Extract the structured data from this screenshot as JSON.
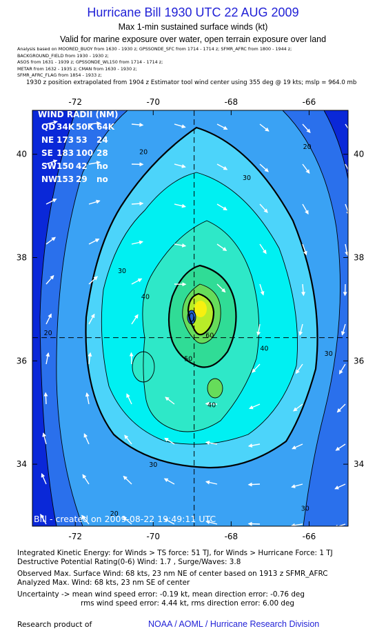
{
  "header": {
    "title": "Hurricane Bill 1930 UTC 22 AUG 2009",
    "subtitle": "Max 1-min sustained surface winds (kt)",
    "validity": "Valid for marine exposure over water, open terrain exposure over land",
    "sources": [
      "Analysis based on  MOORED_BUOY from 1630 - 1930 z;  GPSSONDE_SFC from 1714 - 1714 z;  SFMR_AFRC from 1800 - 1944 z;",
      "BACKGROUND_FIELD from 1930 - 1930 z;",
      "ASOS from 1631 - 1939 z;  GPSSONDE_WL150 from 1714 - 1714 z;",
      "METAR from 1632 - 1935 z;  CMAN from 1630 - 1930 z;",
      "SFMR_AFRC_FLAG from 1854 - 1933 z;"
    ],
    "position_note": "1930 z position extrapolated from 1904 z Estimator tool wind center using 355 deg @ 19 kts; mslp = 964.0 mb"
  },
  "chart_data": {
    "type": "contour",
    "xlabel": "",
    "ylabel": "",
    "x_ticks": [
      "-72",
      "-70",
      "-68",
      "-66"
    ],
    "y_ticks": [
      "40",
      "38",
      "36",
      "34"
    ],
    "x_tick_values": [
      -72,
      -70,
      -68,
      -66
    ],
    "y_tick_values": [
      40,
      38,
      36,
      34
    ],
    "xlim": [
      -73.1,
      -65.0
    ],
    "ylim": [
      32.8,
      40.85
    ],
    "center": {
      "lon": -68.95,
      "lat": 36.45
    },
    "contour_levels": [
      10,
      20,
      30,
      34,
      40,
      50,
      60,
      64
    ],
    "contour_labels": [
      {
        "text": "20",
        "lon": -70.25,
        "lat": 40.0
      },
      {
        "text": "20",
        "lon": -66.05,
        "lat": 40.1
      },
      {
        "text": "30",
        "lon": -67.6,
        "lat": 39.5
      },
      {
        "text": "30",
        "lon": -70.8,
        "lat": 37.7
      },
      {
        "text": "40",
        "lon": -70.2,
        "lat": 37.2
      },
      {
        "text": "40",
        "lon": -67.15,
        "lat": 36.2
      },
      {
        "text": "40",
        "lon": -68.5,
        "lat": 35.1
      },
      {
        "text": "30",
        "lon": -65.5,
        "lat": 36.1
      },
      {
        "text": "20",
        "lon": -72.7,
        "lat": 36.5
      },
      {
        "text": "30",
        "lon": -70.0,
        "lat": 33.95
      },
      {
        "text": "30",
        "lon": -66.1,
        "lat": 33.1
      },
      {
        "text": "20",
        "lon": -71.0,
        "lat": 33.0
      },
      {
        "text": "50",
        "lon": -69.1,
        "lat": 36.0
      },
      {
        "text": "60",
        "lon": -68.55,
        "lat": 36.45
      }
    ],
    "wind_radii": {
      "title": "WIND RADII (NM)",
      "header": [
        "QD",
        "34K",
        "50K",
        "64K"
      ],
      "rows": [
        [
          "NE",
          "173",
          "53",
          "24"
        ],
        [
          "SE",
          "183",
          "100",
          "28"
        ],
        [
          "SW",
          "150",
          "42",
          "no"
        ],
        [
          "NW",
          "153",
          "29",
          "no"
        ]
      ]
    },
    "created_stamp": "Bill - created on 2009-08-22 19:49:11 UTC",
    "colors": {
      "outer": "#0a28d8",
      "blue2": "#2a70ec",
      "blue3": "#3aa2f4",
      "cyan1": "#4cd4fa",
      "cyan2": "#00f0f2",
      "aqua": "#2ee8c8",
      "green1": "#30dc96",
      "green2": "#66dc5a",
      "lime": "#b8ec28",
      "yellow": "#f6f010",
      "core": "#2060d0"
    }
  },
  "footer": {
    "ike": "Integrated Kinetic Energy:  for Winds > TS force: 51 TJ,  for Winds > Hurricane Force: 1 TJ",
    "dpr": "Destructive Potential Rating(0-6)  Wind: 1.7 , Surge/Waves: 3.8",
    "observed": "Observed Max. Surface Wind: 68 kts, 23 nm NE of center based on 1913 z SFMR_AFRC",
    "analyzed": "Analyzed Max. Wind: 68 kts, 23 nm SE of center",
    "uncertainty_line1": "Uncertainty -> mean wind speed error:  -0.19 kt,   mean direction error:  -0.76 deg",
    "uncertainty_line2": "rms wind speed error: 4.44 kt,   rms direction error: 6.00 deg",
    "research": "Research product of",
    "organization": "NOAA / AOML / Hurricane Research Division"
  }
}
